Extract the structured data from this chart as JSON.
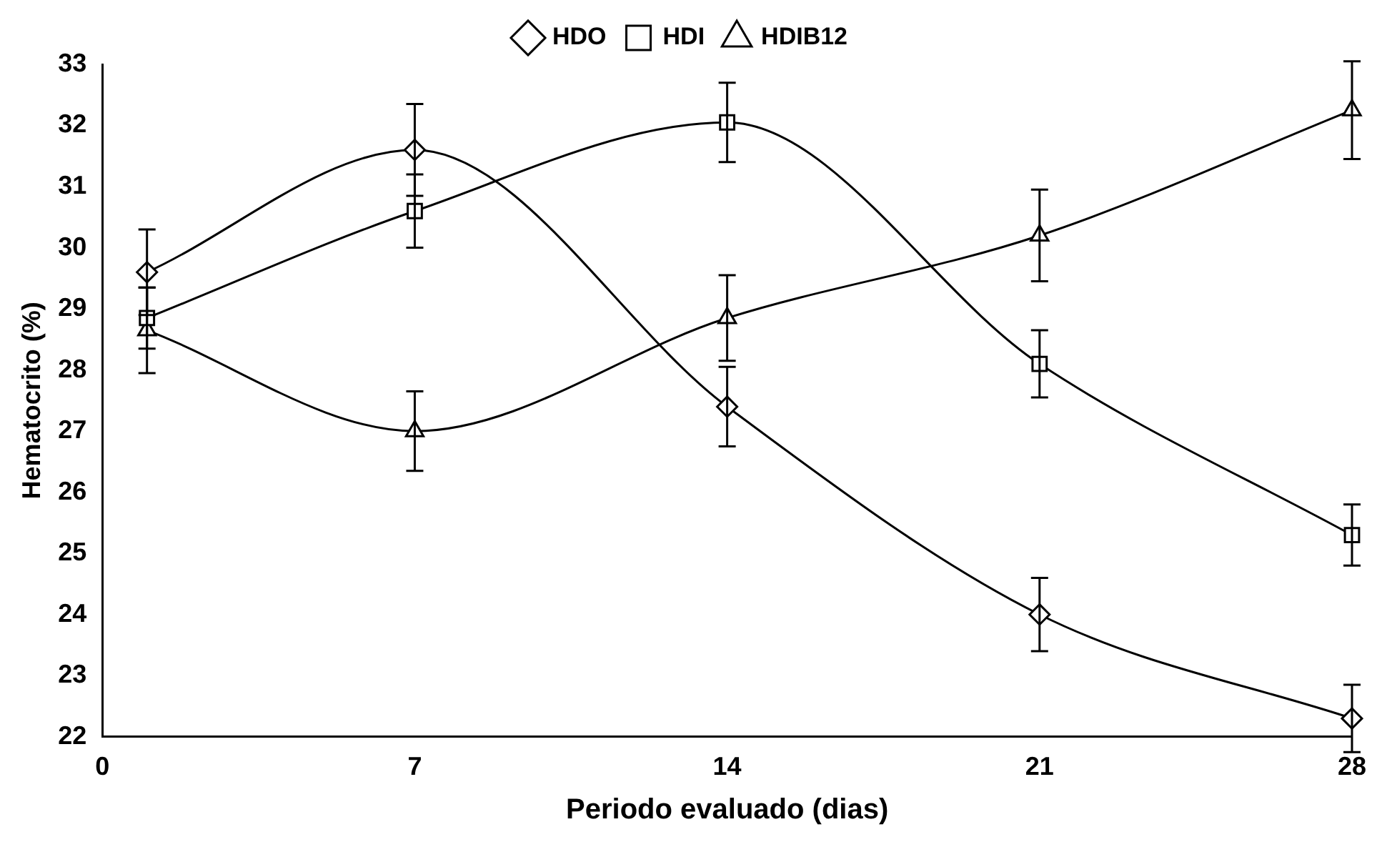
{
  "chart_data": {
    "type": "line",
    "xlabel": "Periodo evaluado (dias)",
    "ylabel": "Hematocrito (%)",
    "x": [
      1,
      7,
      14,
      21,
      28
    ],
    "xlim": [
      0,
      28
    ],
    "xticks": [
      0,
      7,
      14,
      21,
      28
    ],
    "ylim": [
      22,
      33
    ],
    "yticks": [
      22,
      23,
      24,
      25,
      26,
      27,
      28,
      29,
      30,
      31,
      32,
      33
    ],
    "grid": false,
    "legend": "top",
    "series": [
      {
        "name": "HDO",
        "color": "#000000",
        "marker": "diamond",
        "values": [
          29.6,
          31.6,
          27.4,
          24.0,
          22.3
        ],
        "errors": [
          0.7,
          0.75,
          0.65,
          0.6,
          0.55
        ]
      },
      {
        "name": "HDI",
        "color": "#000000",
        "marker": "square",
        "values": [
          28.85,
          30.6,
          32.05,
          28.1,
          25.3
        ],
        "errors": [
          0.5,
          0.6,
          0.65,
          0.55,
          0.5
        ]
      },
      {
        "name": "HDIB12",
        "color": "#000000",
        "marker": "triangle",
        "values": [
          28.65,
          27.0,
          28.85,
          30.2,
          32.25
        ],
        "errors": [
          0.7,
          0.65,
          0.7,
          0.75,
          0.8
        ]
      }
    ]
  }
}
